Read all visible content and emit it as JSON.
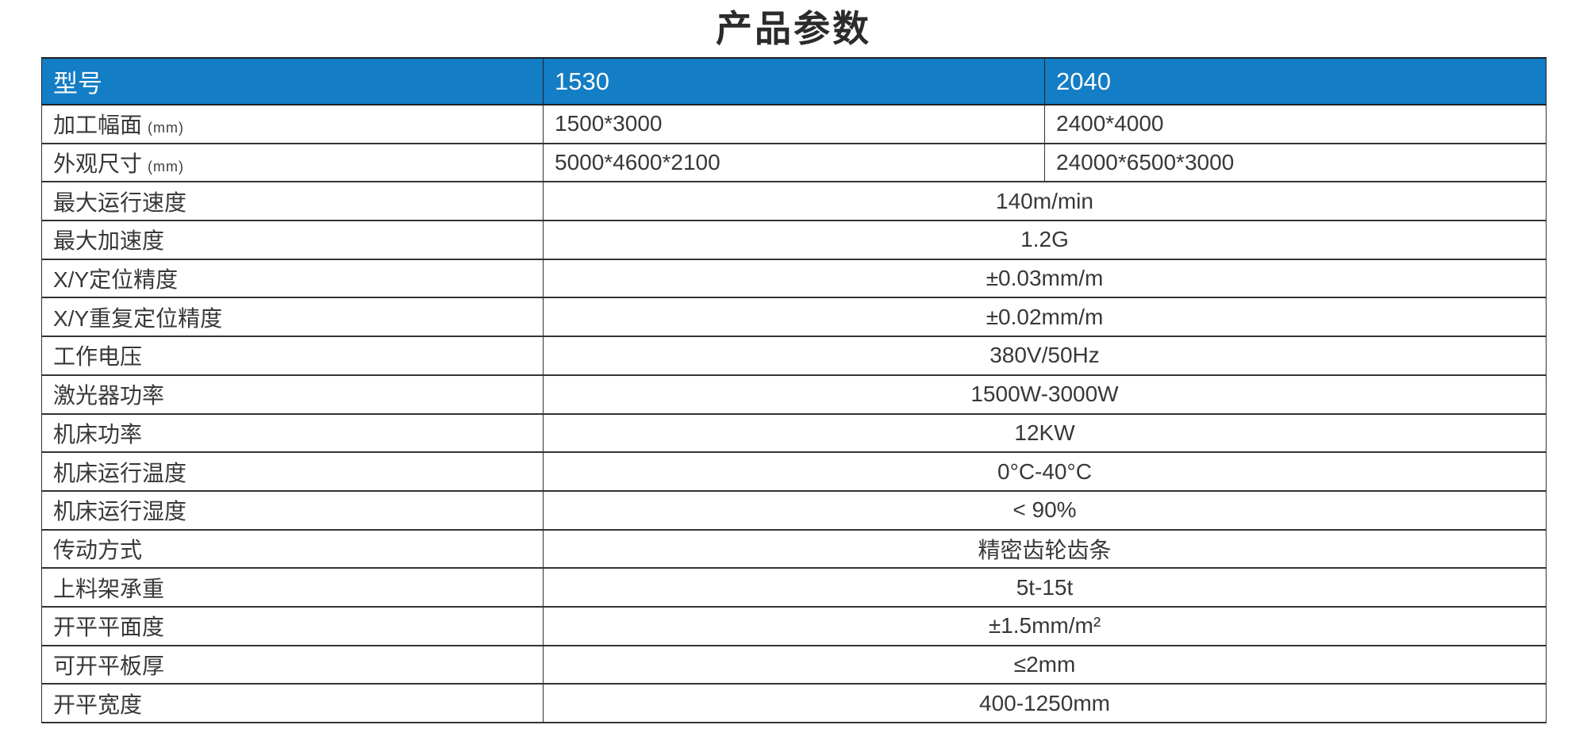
{
  "title": "产品参数",
  "colors": {
    "header_bg": "#137dc5",
    "header_text": "#fafafa",
    "border": "#333333",
    "body_text": "#383838"
  },
  "table": {
    "header": {
      "model": "型号",
      "col1": "1530",
      "col2": "2040"
    },
    "rows": [
      {
        "label": "加工幅面",
        "unit": "(mm)",
        "values": [
          "1500*3000",
          "2400*4000"
        ]
      },
      {
        "label": "外观尺寸",
        "unit": "(mm)",
        "values": [
          "5000*4600*2100",
          "24000*6500*3000"
        ]
      },
      {
        "label": "最大运行速度",
        "value": "140m/min"
      },
      {
        "label": "最大加速度",
        "value": "1.2G"
      },
      {
        "label": "X/Y定位精度",
        "value": "±0.03mm/m"
      },
      {
        "label": "X/Y重复定位精度",
        "value": "±0.02mm/m"
      },
      {
        "label": "工作电压",
        "value": "380V/50Hz"
      },
      {
        "label": "激光器功率",
        "value": "1500W-3000W"
      },
      {
        "label": "机床功率",
        "value": "12KW"
      },
      {
        "label": "机床运行温度",
        "value": "0°C-40°C"
      },
      {
        "label": "机床运行湿度",
        "value": "< 90%"
      },
      {
        "label": "传动方式",
        "value": "精密齿轮齿条"
      },
      {
        "label": "上料架承重",
        "value": "5t-15t"
      },
      {
        "label": "开平平面度",
        "value": "±1.5mm/m²"
      },
      {
        "label": "可开平板厚",
        "value": "≤2mm"
      },
      {
        "label": "开平宽度",
        "value": "400-1250mm"
      }
    ]
  }
}
